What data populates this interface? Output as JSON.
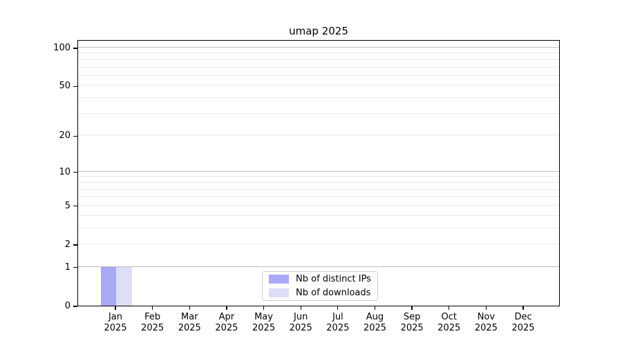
{
  "chart_data": {
    "type": "bar",
    "title": "umap 2025",
    "xlabel": "",
    "ylabel": "",
    "yscale": "log1p",
    "ylim": [
      0,
      100
    ],
    "grid": true,
    "legend_position": "lower center",
    "categories": [
      "Jan",
      "Feb",
      "Mar",
      "Apr",
      "May",
      "Jun",
      "Jul",
      "Aug",
      "Sep",
      "Oct",
      "Nov",
      "Dec"
    ],
    "category_year": "2025",
    "series": [
      {
        "name": "Nb of distinct IPs",
        "color": "#a9a9f4",
        "values": [
          1,
          0,
          0,
          0,
          0,
          0,
          0,
          0,
          0,
          0,
          0,
          0
        ]
      },
      {
        "name": "Nb of downloads",
        "color": "#dedef8",
        "values": [
          1,
          0,
          0,
          0,
          0,
          0,
          0,
          0,
          0,
          0,
          0,
          0
        ]
      }
    ],
    "y_ticks": [
      0,
      1,
      2,
      5,
      10,
      20,
      50,
      100
    ],
    "y_major_gridlines": [
      1,
      10,
      100
    ],
    "y_minor_gridlines": [
      2,
      3,
      4,
      5,
      6,
      7,
      8,
      9,
      20,
      30,
      40,
      50,
      60,
      70,
      80,
      90
    ],
    "colors": {
      "grid_major": "#bdbdbd",
      "grid_minor": "#ebebeb",
      "axis": "#000000",
      "legend_border": "#cccccc",
      "background": "#ffffff"
    }
  }
}
